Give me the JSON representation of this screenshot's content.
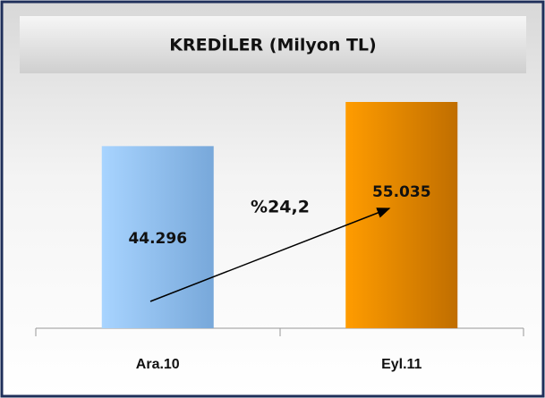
{
  "chart_data": {
    "type": "bar",
    "title": "KREDİLER (Milyon TL)",
    "categories": [
      "Ara.10",
      "Eyl.11"
    ],
    "values": [
      44296,
      55035
    ],
    "value_labels": [
      "44.296",
      "55.035"
    ],
    "colors": [
      "#8fc0f0",
      "#f08c00"
    ],
    "annotation": "%24,2"
  }
}
